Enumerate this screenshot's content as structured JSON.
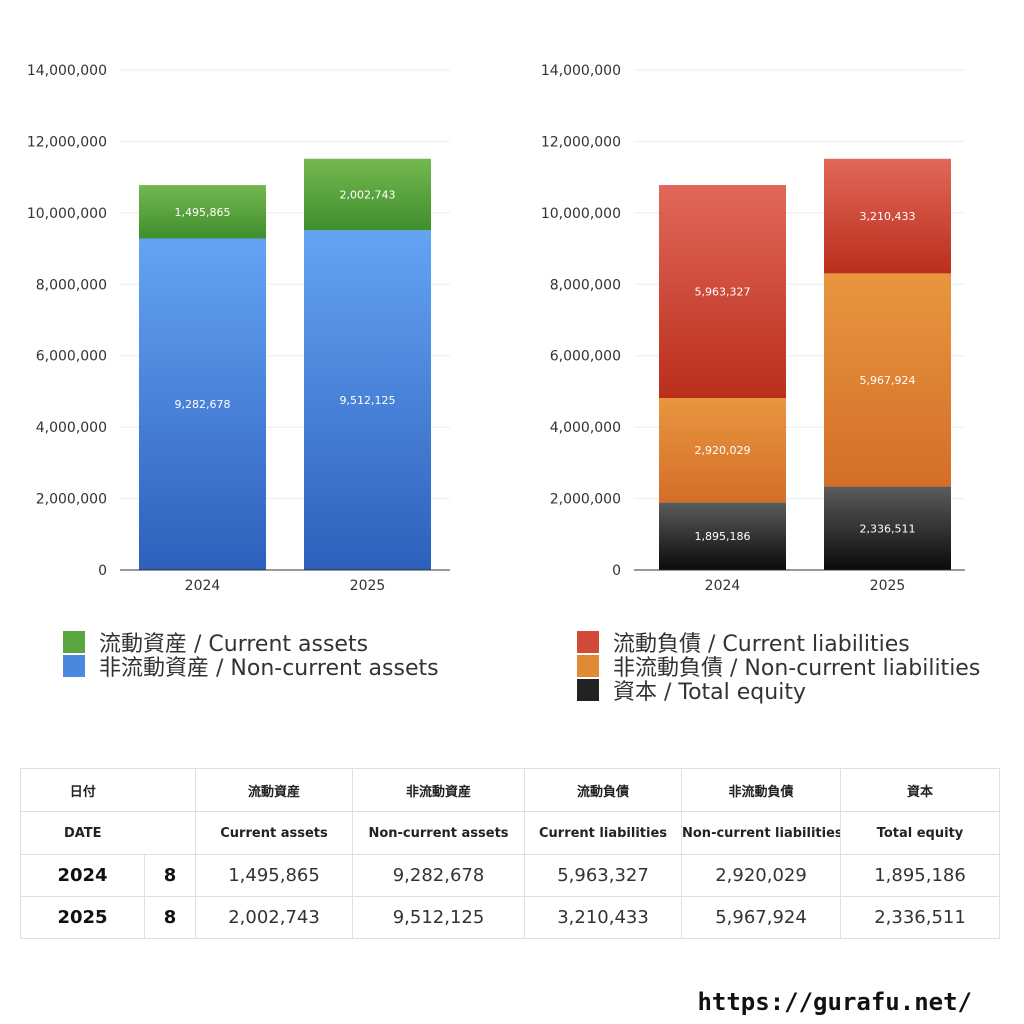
{
  "chart_data": [
    {
      "type": "bar",
      "stacked": true,
      "categories": [
        "2024",
        "2025"
      ],
      "ylim": [
        0,
        14000000
      ],
      "yticks": [
        "0",
        "2,000,000",
        "4,000,000",
        "6,000,000",
        "8,000,000",
        "10,000,000",
        "12,000,000",
        "14,000,000"
      ],
      "grid": true,
      "series": [
        {
          "name": "非流動資産 / Non-current assets",
          "values": [
            9282678,
            9512125
          ],
          "labels": [
            "9,282,678",
            "9,512,125"
          ],
          "color": "#3a72c8",
          "color_top": "#64a4f4",
          "color_bottom": "#2d60bc"
        },
        {
          "name": "流動資産 / Current assets",
          "values": [
            1495865,
            2002743
          ],
          "labels": [
            "1,495,865",
            "2,002,743"
          ],
          "color": "#56a23a",
          "color_top": "#74b850",
          "color_bottom": "#3f8e2c"
        }
      ]
    },
    {
      "type": "bar",
      "stacked": true,
      "categories": [
        "2024",
        "2025"
      ],
      "ylim": [
        0,
        14000000
      ],
      "yticks": [
        "0",
        "2,000,000",
        "4,000,000",
        "6,000,000",
        "8,000,000",
        "10,000,000",
        "12,000,000",
        "14,000,000"
      ],
      "grid": true,
      "series": [
        {
          "name": "資本 / Total equity",
          "values": [
            1895186,
            2336511
          ],
          "labels": [
            "1,895,186",
            "2,336,511"
          ],
          "color": "#333333",
          "color_top": "#5c5c5c",
          "color_bottom": "#0a0a0a"
        },
        {
          "name": "非流動負債 / Non-current liabilities",
          "values": [
            2920029,
            5967924
          ],
          "labels": [
            "2,920,029",
            "5,967,924"
          ],
          "color": "#e0852e",
          "color_top": "#e8963f",
          "color_bottom": "#d46e28"
        },
        {
          "name": "流動負債 / Current liabilities",
          "values": [
            5963327,
            3210433
          ],
          "labels": [
            "5,963,327",
            "3,210,433"
          ],
          "color": "#d04a36",
          "color_top": "#e0685a",
          "color_bottom": "#bb2e1c"
        }
      ]
    }
  ],
  "legend_left": [
    {
      "label": "流動資産 / Current assets",
      "color": "#5aa53e"
    },
    {
      "label": "非流動資産 / Non-current assets",
      "color": "#4a88e0"
    }
  ],
  "legend_right": [
    {
      "label": "流動負債 / Current liabilities",
      "color": "#d44a38"
    },
    {
      "label": "非流動負債 / Non-current liabilities",
      "color": "#e08a36"
    },
    {
      "label": "資本 / Total equity",
      "color": "#222222"
    }
  ],
  "table": {
    "header_jp": [
      "日付",
      "流動資産",
      "非流動資産",
      "流動負債",
      "非流動負債",
      "資本"
    ],
    "header_en": [
      "DATE",
      "Current assets",
      "Non-current assets",
      "Current liabilities",
      "Non-current liabilities",
      "Total equity"
    ],
    "rows": [
      {
        "year": "2024",
        "month": "8",
        "values": [
          "1,495,865",
          "9,282,678",
          "5,963,327",
          "2,920,029",
          "1,895,186"
        ]
      },
      {
        "year": "2025",
        "month": "8",
        "values": [
          "2,002,743",
          "9,512,125",
          "3,210,433",
          "5,967,924",
          "2,336,511"
        ]
      }
    ]
  },
  "footer": {
    "url": "https://gurafu.net/"
  }
}
